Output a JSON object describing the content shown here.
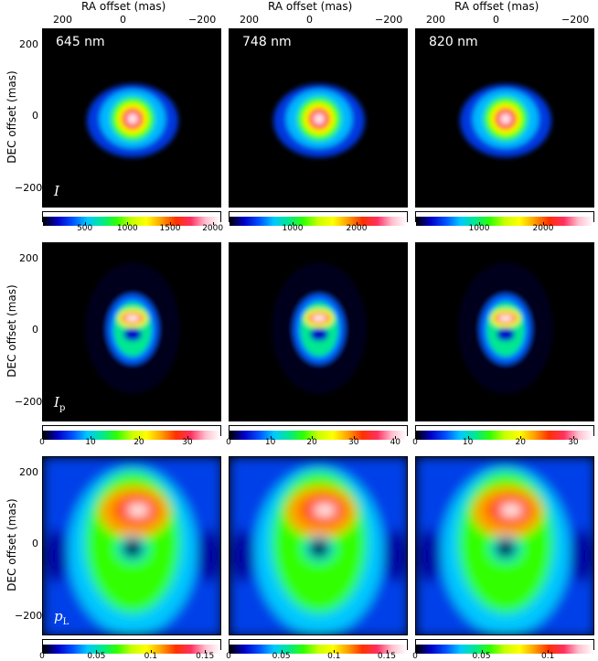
{
  "axes": {
    "xlabel": "RA offset (mas)",
    "ylabel": "DEC offset (mas)",
    "x_ticks": [
      "200",
      "0",
      "−200"
    ],
    "y_ticks": [
      "200",
      "0",
      "−200"
    ]
  },
  "columns": [
    {
      "wavelength": "645 nm"
    },
    {
      "wavelength": "748 nm"
    },
    {
      "wavelength": "820 nm"
    }
  ],
  "rows": [
    {
      "quantity": "I",
      "subscript": "",
      "colorbars": [
        {
          "min": 0,
          "max": 2100,
          "ticks": [
            "500",
            "1000",
            "1500",
            "2000"
          ],
          "tick_values": [
            500,
            1000,
            1500,
            2000
          ]
        },
        {
          "min": 0,
          "max": 2800,
          "ticks": [
            "1000",
            "2000"
          ],
          "tick_values": [
            1000,
            2000
          ]
        },
        {
          "min": 0,
          "max": 2800,
          "ticks": [
            "1000",
            "2000"
          ],
          "tick_values": [
            1000,
            2000
          ]
        }
      ]
    },
    {
      "quantity": "I",
      "subscript": "p",
      "colorbars": [
        {
          "min": 0,
          "max": 37,
          "ticks": [
            "0",
            "10",
            "20",
            "30"
          ],
          "tick_values": [
            0,
            10,
            20,
            30
          ]
        },
        {
          "min": 0,
          "max": 43,
          "ticks": [
            "0",
            "10",
            "20",
            "30",
            "40"
          ],
          "tick_values": [
            0,
            10,
            20,
            30,
            40
          ]
        },
        {
          "min": 0,
          "max": 34,
          "ticks": [
            "0",
            "10",
            "20",
            "30"
          ],
          "tick_values": [
            0,
            10,
            20,
            30
          ]
        }
      ]
    },
    {
      "quantity": "p",
      "subscript": "L",
      "colorbars": [
        {
          "min": 0,
          "max": 0.165,
          "ticks": [
            "0",
            "0.05",
            "0.1",
            "0.15"
          ],
          "tick_values": [
            0,
            0.05,
            0.1,
            0.15
          ]
        },
        {
          "min": 0,
          "max": 0.17,
          "ticks": [
            "0",
            "0.05",
            "0.1",
            "0.15"
          ],
          "tick_values": [
            0,
            0.05,
            0.1,
            0.15
          ]
        },
        {
          "min": 0,
          "max": 0.135,
          "ticks": [
            "0",
            "0.05",
            "0.1"
          ],
          "tick_values": [
            0,
            0.05,
            0.1
          ]
        }
      ]
    }
  ],
  "colors": {
    "background": "#000000",
    "colormap": [
      "#000000",
      "#0000c8",
      "#0050ff",
      "#00c8ff",
      "#00e890",
      "#30ff00",
      "#c8ff00",
      "#ffff00",
      "#ffa000",
      "#ff3000",
      "#ff3060",
      "#ffc0d0",
      "#ffffff"
    ]
  }
}
